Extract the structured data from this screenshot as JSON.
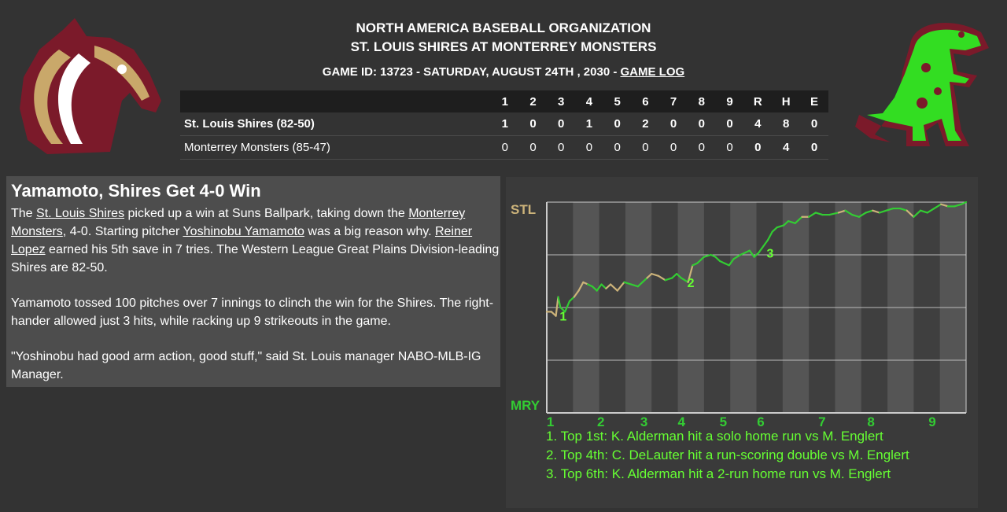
{
  "header": {
    "line1": "NORTH AMERICA BASEBALL ORGANIZATION",
    "line2": "ST. LOUIS SHIRES AT MONTERREY MONSTERS",
    "line3_prefix": "GAME ID: 13723 - SATURDAY, AUGUST 24TH , 2030 - ",
    "game_log_link": "GAME LOG"
  },
  "logos": {
    "left": "horse-logo",
    "right": "dinosaur-logo"
  },
  "linescore": {
    "innings": [
      "1",
      "2",
      "3",
      "4",
      "5",
      "6",
      "7",
      "8",
      "9"
    ],
    "totals_headers": [
      "R",
      "H",
      "E"
    ],
    "teams": [
      {
        "name": "St. Louis Shires (82-50)",
        "innings": [
          "1",
          "0",
          "0",
          "1",
          "0",
          "2",
          "0",
          "0",
          "0"
        ],
        "totals": [
          "4",
          "8",
          "0"
        ]
      },
      {
        "name": "Monterrey Monsters (85-47)",
        "innings": [
          "0",
          "0",
          "0",
          "0",
          "0",
          "0",
          "0",
          "0",
          "0"
        ],
        "totals": [
          "0",
          "4",
          "0"
        ]
      }
    ]
  },
  "story": {
    "headline": "Yamamoto, Shires Get 4-0 Win",
    "p1": {
      "t1": "The ",
      "link1": "St. Louis Shires",
      "t2": " picked up a win at Suns Ballpark, taking down the ",
      "link2": "Monterrey Monsters",
      "t3": ", 4-0. Starting pitcher ",
      "link3": "Yoshinobu Yamamoto",
      "t4": " was a big reason why. ",
      "link4": "Reiner Lopez",
      "t5": " earned his 5th save in 7 tries. The Western League Great Plains Division-leading Shires are 82-50."
    },
    "p2": "Yamamoto tossed 100 pitches over 7 innings to clinch the win for the Shires. The right-hander allowed just 3 hits, while racking up 9 strikeouts in the game.",
    "p3": "\"Yoshinobu had good arm action, good stuff,\" said St. Louis manager NABO-MLB-IG Manager."
  },
  "chart_data": {
    "type": "line",
    "top_label": "STL",
    "bottom_label": "MRY",
    "x_ticks": [
      "1",
      "2",
      "3",
      "4",
      "5",
      "6",
      "7",
      "8",
      "9"
    ],
    "ylim": [
      0,
      1
    ],
    "grid": true,
    "colors": {
      "stl": "#ccb37a",
      "mry": "#33cc33",
      "marker": "#66ff33"
    },
    "series": [
      {
        "values": [
          [
            0.0,
            0.48
          ],
          [
            0.1,
            0.48
          ],
          [
            0.2,
            0.46
          ],
          [
            0.25,
            0.55
          ],
          [
            0.3,
            0.5
          ],
          [
            0.4,
            0.48
          ],
          [
            0.5,
            0.53
          ],
          [
            0.6,
            0.55
          ],
          [
            0.7,
            0.58
          ],
          [
            0.8,
            0.62
          ],
          [
            0.9,
            0.61
          ],
          [
            1.0,
            0.6
          ],
          [
            1.1,
            0.58
          ],
          [
            1.2,
            0.61
          ],
          [
            1.3,
            0.59
          ],
          [
            1.4,
            0.61
          ],
          [
            1.55,
            0.58
          ],
          [
            1.7,
            0.62
          ],
          [
            1.85,
            0.61
          ],
          [
            2.0,
            0.6
          ],
          [
            2.1,
            0.62
          ],
          [
            2.2,
            0.64
          ],
          [
            2.3,
            0.66
          ],
          [
            2.45,
            0.65
          ],
          [
            2.6,
            0.63
          ],
          [
            2.75,
            0.64
          ],
          [
            2.85,
            0.66
          ],
          [
            2.95,
            0.64
          ],
          [
            3.1,
            0.62
          ],
          [
            3.2,
            0.7
          ],
          [
            3.3,
            0.71
          ],
          [
            3.45,
            0.74
          ],
          [
            3.6,
            0.75
          ],
          [
            3.7,
            0.74
          ],
          [
            3.8,
            0.72
          ],
          [
            3.9,
            0.71
          ],
          [
            4.0,
            0.7
          ],
          [
            4.1,
            0.73
          ],
          [
            4.25,
            0.75
          ],
          [
            4.35,
            0.76
          ],
          [
            4.45,
            0.77
          ],
          [
            4.55,
            0.74
          ],
          [
            4.65,
            0.76
          ],
          [
            4.75,
            0.79
          ],
          [
            4.85,
            0.82
          ],
          [
            4.95,
            0.86
          ],
          [
            5.05,
            0.88
          ],
          [
            5.2,
            0.89
          ],
          [
            5.3,
            0.91
          ],
          [
            5.45,
            0.9
          ],
          [
            5.6,
            0.93
          ],
          [
            5.75,
            0.93
          ],
          [
            5.9,
            0.95
          ],
          [
            6.05,
            0.94
          ],
          [
            6.2,
            0.94
          ],
          [
            6.4,
            0.95
          ],
          [
            6.55,
            0.96
          ],
          [
            6.7,
            0.94
          ],
          [
            6.85,
            0.93
          ],
          [
            7.0,
            0.95
          ],
          [
            7.15,
            0.96
          ],
          [
            7.3,
            0.95
          ],
          [
            7.45,
            0.96
          ],
          [
            7.6,
            0.97
          ],
          [
            7.75,
            0.97
          ],
          [
            7.9,
            0.96
          ],
          [
            8.05,
            0.93
          ],
          [
            8.2,
            0.96
          ],
          [
            8.35,
            0.95
          ],
          [
            8.5,
            0.97
          ],
          [
            8.65,
            0.99
          ],
          [
            8.8,
            0.98
          ],
          [
            8.95,
            0.98
          ],
          [
            9.1,
            0.99
          ],
          [
            9.2,
            1.0
          ]
        ]
      }
    ],
    "markers": [
      {
        "label": "1",
        "x": 0.18,
        "y": 0.46
      },
      {
        "label": "2",
        "x": 2.98,
        "y": 0.62
      },
      {
        "label": "3",
        "x": 4.72,
        "y": 0.76
      }
    ],
    "annotations": [
      "1. Top 1st: K. Alderman hit a solo home run vs M. Englert",
      "2. Top 4th: C. DeLauter hit a run-scoring double vs M. Englert",
      "3. Top 6th: K. Alderman hit a 2-run home run vs M. Englert"
    ]
  }
}
